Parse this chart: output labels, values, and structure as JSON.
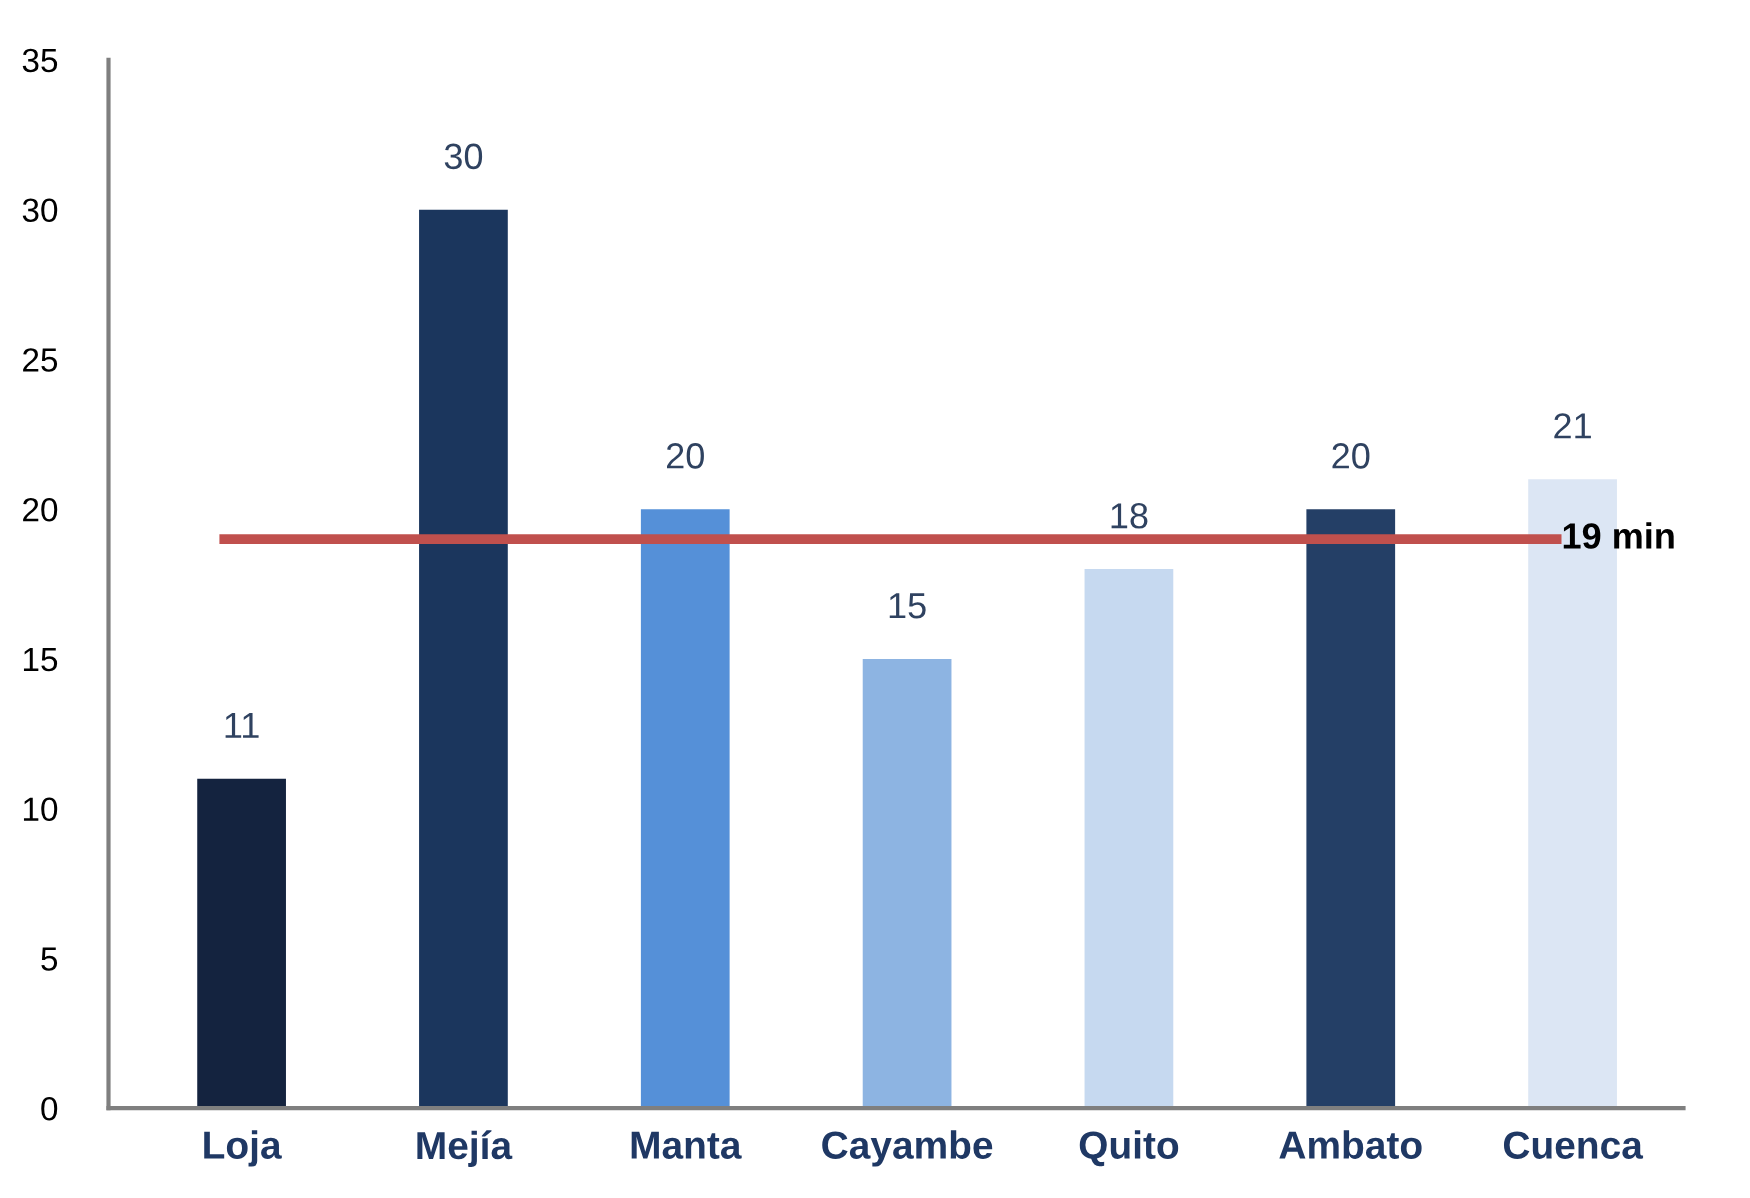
{
  "chart_data": {
    "type": "bar",
    "categories": [
      "Loja",
      "Mejía",
      "Manta",
      "Cayambe",
      "Quito",
      "Ambato",
      "Cuenca"
    ],
    "values": [
      11,
      30,
      20,
      15,
      18,
      20,
      21
    ],
    "colors": [
      "#14233f",
      "#1b365d",
      "#5590d8",
      "#8db4e2",
      "#c6d9f0",
      "#243f66",
      "#dce6f4"
    ],
    "ylim": [
      0,
      35
    ],
    "yticks": [
      0,
      5,
      10,
      15,
      20,
      25,
      30,
      35
    ],
    "data_labels": true,
    "grid": false,
    "ref_lines": [
      {
        "axis": "y",
        "value": 19,
        "label": "19 min",
        "color": "#c0504d"
      }
    ]
  }
}
